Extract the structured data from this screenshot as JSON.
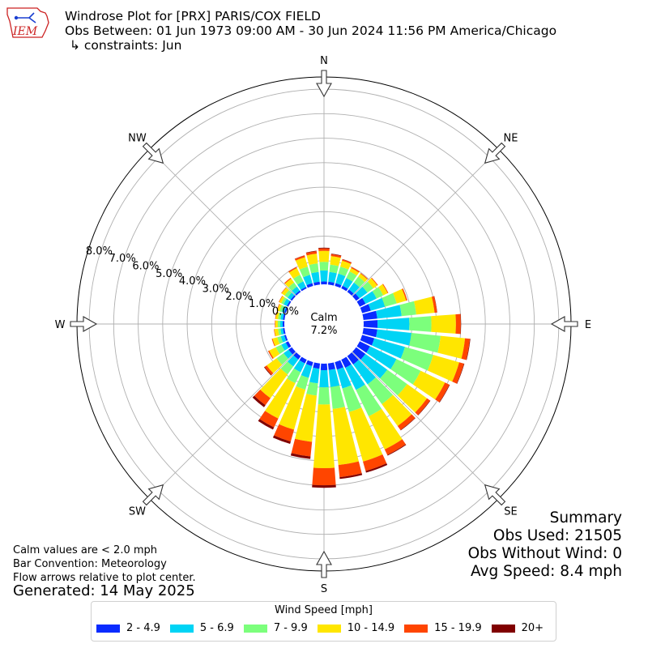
{
  "header": {
    "logo_text": "IEM",
    "title": "Windrose Plot for [PRX] PARIS/COX FIELD",
    "obs_between": "Obs Between: 01 Jun 1973 09:00 AM - 30 Jun 2024 11:56 PM America/Chicago",
    "constraints": "↳ constraints: Jun"
  },
  "notes": {
    "calm": "Calm values are < 2.0 mph",
    "bar_convention": "Bar Convention: Meteorology",
    "flow_arrows": "Flow arrows relative to plot center.",
    "generated": "Generated: 14 May 2025"
  },
  "summary": {
    "title": "Summary",
    "obs_used": "Obs Used: 21505",
    "obs_without_wind": "Obs Without Wind: 0",
    "avg_speed": "Avg Speed: 8.4 mph"
  },
  "legend": {
    "title": "Wind Speed [mph]"
  },
  "colors": {
    "bins": [
      "#0a2bff",
      "#00d4f5",
      "#7cff7c",
      "#ffe600",
      "#ff4500",
      "#800000"
    ],
    "grid": "#b0b0b0",
    "logo_red": "#cc2222",
    "logo_blue": "#1a3fd1"
  },
  "chart_data": {
    "type": "windrose",
    "calm_label": "Calm",
    "calm_value": "7.2%",
    "radial_ticks": [
      "0.0%",
      "1.0%",
      "2.0%",
      "3.0%",
      "4.0%",
      "5.0%",
      "6.0%",
      "7.0%",
      "8.0%"
    ],
    "radial_max": 8.5,
    "direction_labels": [
      "N",
      "NE",
      "E",
      "SE",
      "S",
      "SW",
      "W",
      "NW"
    ],
    "speed_bins": [
      "2 - 4.9",
      "5 - 6.9",
      "7 - 9.9",
      "10 - 14.9",
      "15 - 19.9",
      "20+"
    ],
    "sectors": [
      {
        "dir": 0,
        "values": [
          0.15,
          0.45,
          0.35,
          0.45,
          0.1,
          0.03
        ]
      },
      {
        "dir": 10,
        "values": [
          0.15,
          0.4,
          0.3,
          0.35,
          0.08,
          0.02
        ]
      },
      {
        "dir": 20,
        "values": [
          0.15,
          0.4,
          0.3,
          0.25,
          0.06,
          0.01
        ]
      },
      {
        "dir": 30,
        "values": [
          0.15,
          0.35,
          0.3,
          0.15,
          0.05,
          0.0
        ]
      },
      {
        "dir": 40,
        "values": [
          0.15,
          0.35,
          0.3,
          0.15,
          0.03,
          0.0
        ]
      },
      {
        "dir": 50,
        "values": [
          0.2,
          0.4,
          0.3,
          0.2,
          0.03,
          0.0
        ]
      },
      {
        "dir": 60,
        "values": [
          0.3,
          0.5,
          0.3,
          0.2,
          0.03,
          0.0
        ]
      },
      {
        "dir": 70,
        "values": [
          0.4,
          0.6,
          0.5,
          0.4,
          0.05,
          0.0
        ]
      },
      {
        "dir": 80,
        "values": [
          0.6,
          1.0,
          0.6,
          0.75,
          0.1,
          0.01
        ]
      },
      {
        "dir": 90,
        "values": [
          0.6,
          1.3,
          0.9,
          1.0,
          0.2,
          0.01
        ]
      },
      {
        "dir": 100,
        "values": [
          0.6,
          1.4,
          1.2,
          1.0,
          0.2,
          0.02
        ]
      },
      {
        "dir": 110,
        "values": [
          0.55,
          1.3,
          1.2,
          1.1,
          0.2,
          0.02
        ]
      },
      {
        "dir": 120,
        "values": [
          0.5,
          1.2,
          1.1,
          1.1,
          0.2,
          0.02
        ]
      },
      {
        "dir": 130,
        "values": [
          0.5,
          1.1,
          1.0,
          1.0,
          0.15,
          0.02
        ]
      },
      {
        "dir": 140,
        "values": [
          0.45,
          1.0,
          1.0,
          1.1,
          0.2,
          0.02
        ]
      },
      {
        "dir": 150,
        "values": [
          0.4,
          1.0,
          1.2,
          1.5,
          0.25,
          0.03
        ]
      },
      {
        "dir": 160,
        "values": [
          0.35,
          0.8,
          1.0,
          2.1,
          0.4,
          0.07
        ]
      },
      {
        "dir": 170,
        "values": [
          0.3,
          0.7,
          0.9,
          2.3,
          0.5,
          0.07
        ]
      },
      {
        "dir": 180,
        "values": [
          0.3,
          0.7,
          0.7,
          2.6,
          0.7,
          0.1
        ]
      },
      {
        "dir": 190,
        "values": [
          0.25,
          0.6,
          0.5,
          1.9,
          0.6,
          0.1
        ]
      },
      {
        "dir": 200,
        "values": [
          0.2,
          0.5,
          0.5,
          1.7,
          0.5,
          0.1
        ]
      },
      {
        "dir": 210,
        "values": [
          0.2,
          0.4,
          0.5,
          1.6,
          0.4,
          0.1
        ]
      },
      {
        "dir": 220,
        "values": [
          0.2,
          0.35,
          0.4,
          1.2,
          0.35,
          0.1
        ]
      },
      {
        "dir": 230,
        "values": [
          0.2,
          0.25,
          0.35,
          0.5,
          0.1,
          0.03
        ]
      },
      {
        "dir": 240,
        "values": [
          0.15,
          0.2,
          0.25,
          0.3,
          0.05,
          0.0
        ]
      },
      {
        "dir": 250,
        "values": [
          0.1,
          0.15,
          0.15,
          0.2,
          0.03,
          0.0
        ]
      },
      {
        "dir": 260,
        "values": [
          0.1,
          0.1,
          0.1,
          0.15,
          0.02,
          0.0
        ]
      },
      {
        "dir": 270,
        "values": [
          0.1,
          0.1,
          0.1,
          0.1,
          0.02,
          0.0
        ]
      },
      {
        "dir": 280,
        "values": [
          0.1,
          0.1,
          0.1,
          0.1,
          0.02,
          0.0
        ]
      },
      {
        "dir": 290,
        "values": [
          0.1,
          0.1,
          0.1,
          0.1,
          0.02,
          0.0
        ]
      },
      {
        "dir": 300,
        "values": [
          0.1,
          0.15,
          0.1,
          0.1,
          0.02,
          0.0
        ]
      },
      {
        "dir": 310,
        "values": [
          0.1,
          0.15,
          0.15,
          0.15,
          0.02,
          0.0
        ]
      },
      {
        "dir": 320,
        "values": [
          0.1,
          0.2,
          0.2,
          0.2,
          0.04,
          0.0
        ]
      },
      {
        "dir": 330,
        "values": [
          0.1,
          0.25,
          0.3,
          0.3,
          0.05,
          0.0
        ]
      },
      {
        "dir": 340,
        "values": [
          0.15,
          0.35,
          0.35,
          0.4,
          0.07,
          0.01
        ]
      },
      {
        "dir": 350,
        "values": [
          0.15,
          0.4,
          0.35,
          0.4,
          0.1,
          0.02
        ]
      }
    ]
  }
}
